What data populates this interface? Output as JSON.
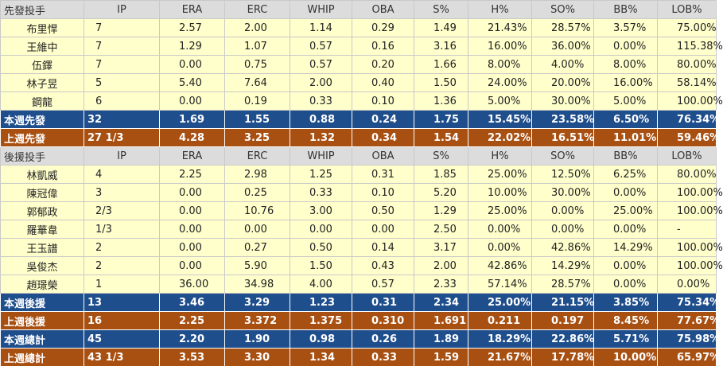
{
  "starters": {
    "header": [
      "先發投手",
      "IP",
      "ERA",
      "ERC",
      "WHIP",
      "OBA",
      "S%",
      "H%",
      "SO%",
      "BB%",
      "LOB%"
    ],
    "rows": [
      [
        "布里悍",
        "7",
        "2.57",
        "2.00",
        "1.14",
        "0.29",
        "1.49",
        "21.43%",
        "28.57%",
        "3.57%",
        "75.00%"
      ],
      [
        "王維中",
        "7",
        "1.29",
        "1.07",
        "0.57",
        "0.16",
        "3.16",
        "16.00%",
        "36.00%",
        "0.00%",
        "115.38%"
      ],
      [
        "伍鐸",
        "7",
        "0.00",
        "0.75",
        "0.57",
        "0.20",
        "1.66",
        "8.00%",
        "4.00%",
        "8.00%",
        "80.00%"
      ],
      [
        "林子昱",
        "5",
        "5.40",
        "7.64",
        "2.00",
        "0.40",
        "1.50",
        "24.00%",
        "20.00%",
        "16.00%",
        "58.14%"
      ],
      [
        "鋼龍",
        "6",
        "0.00",
        "0.19",
        "0.33",
        "0.10",
        "1.36",
        "5.00%",
        "30.00%",
        "5.00%",
        "100.00%"
      ]
    ],
    "this_week": [
      "本週先發",
      "32",
      "1.69",
      "1.55",
      "0.88",
      "0.24",
      "1.75",
      "15.45%",
      "23.58%",
      "6.50%",
      "76.34%"
    ],
    "last_week": [
      "上週先發",
      "27 1/3",
      "4.28",
      "3.25",
      "1.32",
      "0.34",
      "1.54",
      "22.02%",
      "16.51%",
      "11.01%",
      "59.46%"
    ]
  },
  "relievers": {
    "header": [
      "後援投手",
      "IP",
      "ERA",
      "ERC",
      "WHIP",
      "OBA",
      "S%",
      "H%",
      "SO%",
      "BB%",
      "LOB%"
    ],
    "rows": [
      [
        "林凱威",
        "4",
        "2.25",
        "2.98",
        "1.25",
        "0.31",
        "1.85",
        "25.00%",
        "12.50%",
        "6.25%",
        "80.00%"
      ],
      [
        "陳冠偉",
        "3",
        "0.00",
        "0.25",
        "0.33",
        "0.10",
        "5.20",
        "10.00%",
        "30.00%",
        "0.00%",
        "100.00%"
      ],
      [
        "郭郁政",
        "2/3",
        "0.00",
        "10.76",
        "3.00",
        "0.50",
        "1.29",
        "25.00%",
        "0.00%",
        "25.00%",
        "100.00%"
      ],
      [
        "羅華韋",
        "1/3",
        "0.00",
        "0.00",
        "0.00",
        "0.00",
        "2.50",
        "0.00%",
        "0.00%",
        "0.00%",
        "-"
      ],
      [
        "王玉譜",
        "2",
        "0.00",
        "0.27",
        "0.50",
        "0.14",
        "3.17",
        "0.00%",
        "42.86%",
        "14.29%",
        "100.00%"
      ],
      [
        "吳俊杰",
        "2",
        "0.00",
        "5.90",
        "1.50",
        "0.43",
        "2.00",
        "42.86%",
        "14.29%",
        "0.00%",
        "100.00%"
      ],
      [
        "趙璟榮",
        "1",
        "36.00",
        "34.98",
        "4.00",
        "0.57",
        "2.33",
        "57.14%",
        "28.57%",
        "0.00%",
        "0.00%"
      ]
    ],
    "this_week": [
      "本週後援",
      "13",
      "3.46",
      "3.29",
      "1.23",
      "0.31",
      "2.34",
      "25.00%",
      "21.15%",
      "3.85%",
      "75.34%"
    ],
    "last_week": [
      "上週後援",
      "16",
      "2.25",
      "3.372",
      "1.375",
      "0.310",
      "1.691",
      "0.211",
      "0.197",
      "8.45%",
      "77.67%"
    ]
  },
  "totals": {
    "this_week": [
      "本週總計",
      "45",
      "2.20",
      "1.90",
      "0.98",
      "0.26",
      "1.89",
      "18.29%",
      "22.86%",
      "5.71%",
      "75.98%"
    ],
    "last_week": [
      "上週總計",
      "43 1/3",
      "3.53",
      "3.30",
      "1.34",
      "0.33",
      "1.59",
      "21.67%",
      "17.78%",
      "10.00%",
      "65.97%"
    ]
  },
  "colors": {
    "data_row_bg": "#ffffcc",
    "header_bg": "#dcdcdc",
    "this_week_bg": "#1f4e8c",
    "last_week_bg": "#a85012"
  }
}
